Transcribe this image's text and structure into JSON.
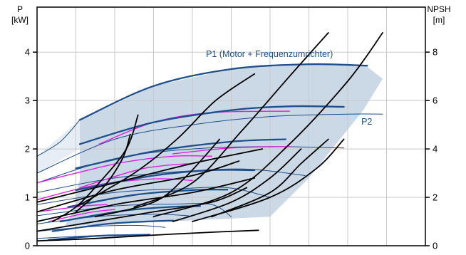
{
  "chart_data": {
    "type": "line",
    "title": "",
    "xlim": [
      0,
      10
    ],
    "y_left": {
      "label_line1": "P",
      "label_line2": "[kW]",
      "ticks": [
        0,
        1,
        2,
        3,
        4
      ],
      "ylim": [
        0,
        5
      ]
    },
    "y_right": {
      "label_line1": "NPSH",
      "label_line2": "[m]",
      "ticks": [
        0,
        2,
        4,
        6,
        8
      ],
      "ylim": [
        0,
        10
      ]
    },
    "grid": true,
    "colors": {
      "p1": "#1d4f8c",
      "p2": "#1d4f8c",
      "thin_blue": "#1d4f8c",
      "magenta": "#e020e0",
      "npsh": "#000000",
      "band_fill": "#cbd8e6",
      "band_light_fill": "#e6edf5",
      "label_color": "#1d4f8c"
    },
    "annotations": [
      {
        "text": "P1 (Motor + Frequenzumrichter)",
        "x": 4.35,
        "y": 3.9
      },
      {
        "text": "P2",
        "x": 8.35,
        "y": 2.5
      }
    ],
    "band_upper": [
      [
        1.1,
        2.6
      ],
      [
        3.0,
        3.3
      ],
      [
        5.0,
        3.65
      ],
      [
        7.0,
        3.77
      ],
      [
        8.5,
        3.7
      ],
      [
        8.9,
        3.45
      ],
      [
        8.4,
        2.8
      ],
      [
        7.0,
        1.4
      ],
      [
        6.0,
        0.6
      ]
    ],
    "band_lower": [
      [
        0.7,
        0.4
      ],
      [
        1.0,
        0.8
      ],
      [
        1.0,
        1.1
      ],
      [
        1.1,
        1.35
      ],
      [
        1.1,
        2.6
      ]
    ],
    "band_light": [
      [
        0.0,
        1.5
      ],
      [
        0.0,
        1.85
      ],
      [
        1.1,
        2.6
      ],
      [
        1.1,
        2.0
      ],
      [
        0.0,
        1.5
      ]
    ],
    "series": [
      {
        "group": "p_thick",
        "points": [
          [
            1.1,
            2.6
          ],
          [
            3.0,
            3.3
          ],
          [
            5.0,
            3.65
          ],
          [
            7.0,
            3.75
          ],
          [
            8.5,
            3.72
          ]
        ]
      },
      {
        "group": "p_thick",
        "points": [
          [
            1.1,
            2.1
          ],
          [
            3.0,
            2.55
          ],
          [
            5.0,
            2.8
          ],
          [
            6.5,
            2.88
          ],
          [
            7.9,
            2.87
          ]
        ]
      },
      {
        "group": "p_thick",
        "points": [
          [
            1.0,
            1.6
          ],
          [
            3.0,
            1.95
          ],
          [
            5.0,
            2.15
          ],
          [
            6.4,
            2.2
          ]
        ]
      },
      {
        "group": "p_thick",
        "points": [
          [
            1.0,
            1.15
          ],
          [
            3.0,
            1.45
          ],
          [
            4.5,
            1.56
          ],
          [
            5.6,
            1.56
          ]
        ]
      },
      {
        "group": "p_thick",
        "points": [
          [
            0.8,
            0.8
          ],
          [
            2.5,
            1.05
          ],
          [
            4.0,
            1.15
          ],
          [
            4.9,
            1.16
          ]
        ]
      },
      {
        "group": "p_thick",
        "points": [
          [
            0.6,
            0.5
          ],
          [
            2.2,
            0.72
          ],
          [
            3.4,
            0.8
          ],
          [
            4.2,
            0.82
          ]
        ]
      },
      {
        "group": "p_thick",
        "points": [
          [
            0.4,
            0.3
          ],
          [
            1.8,
            0.45
          ],
          [
            2.8,
            0.5
          ],
          [
            3.5,
            0.52
          ]
        ]
      },
      {
        "group": "p_thick",
        "points": [
          [
            0.3,
            0.12
          ],
          [
            1.5,
            0.2
          ],
          [
            2.3,
            0.22
          ],
          [
            2.9,
            0.23
          ]
        ]
      },
      {
        "group": "p_thin",
        "points": [
          [
            0.0,
            1.85
          ],
          [
            0.6,
            2.15
          ],
          [
            1.1,
            2.6
          ]
        ]
      },
      {
        "group": "p_thin",
        "points": [
          [
            0.0,
            1.5
          ],
          [
            2.0,
            2.2
          ],
          [
            4.0,
            2.5
          ],
          [
            6.0,
            2.67
          ],
          [
            8.0,
            2.72
          ],
          [
            8.9,
            2.72
          ]
        ]
      },
      {
        "group": "p_thin",
        "points": [
          [
            0.0,
            1.3
          ],
          [
            2.0,
            1.8
          ],
          [
            4.0,
            2.0
          ],
          [
            6.0,
            2.05
          ],
          [
            7.9,
            2.02
          ]
        ]
      },
      {
        "group": "p_thin",
        "points": [
          [
            0.0,
            1.1
          ],
          [
            2.0,
            1.4
          ],
          [
            4.0,
            1.55
          ],
          [
            5.5,
            1.58
          ],
          [
            6.9,
            1.45
          ]
        ]
      },
      {
        "group": "p_thin",
        "points": [
          [
            0.0,
            0.85
          ],
          [
            2.0,
            1.1
          ],
          [
            3.5,
            1.17
          ],
          [
            4.9,
            1.2
          ],
          [
            6.0,
            1.0
          ]
        ]
      },
      {
        "group": "p_thin",
        "points": [
          [
            0.0,
            0.62
          ],
          [
            2.0,
            0.82
          ],
          [
            3.5,
            0.86
          ],
          [
            4.5,
            0.85
          ],
          [
            5.0,
            0.6
          ]
        ]
      },
      {
        "group": "p_thin",
        "points": [
          [
            0.0,
            0.45
          ],
          [
            1.5,
            0.6
          ],
          [
            3.0,
            0.65
          ],
          [
            3.9,
            0.62
          ]
        ]
      },
      {
        "group": "p_thin",
        "points": [
          [
            0.0,
            0.3
          ],
          [
            1.5,
            0.4
          ],
          [
            2.6,
            0.42
          ],
          [
            3.3,
            0.38
          ]
        ]
      },
      {
        "group": "p_thin",
        "points": [
          [
            0.0,
            0.15
          ],
          [
            1.2,
            0.2
          ],
          [
            2.2,
            0.22
          ],
          [
            2.7,
            0.2
          ]
        ]
      },
      {
        "group": "magenta",
        "points": [
          [
            1.6,
            2.1
          ],
          [
            3.0,
            2.55
          ],
          [
            4.5,
            2.75
          ],
          [
            6.5,
            2.78
          ]
        ]
      },
      {
        "group": "magenta",
        "points": [
          [
            0.0,
            1.3
          ],
          [
            1.0,
            1.5
          ],
          [
            2.2,
            1.72
          ],
          [
            3.5,
            1.85
          ],
          [
            4.5,
            1.85
          ]
        ]
      },
      {
        "group": "magenta",
        "points": [
          [
            1.1,
            1.2
          ],
          [
            2.5,
            1.55
          ],
          [
            3.2,
            1.65
          ],
          [
            4.0,
            1.7
          ]
        ]
      },
      {
        "group": "magenta",
        "points": [
          [
            0.0,
            0.95
          ],
          [
            1.5,
            1.25
          ],
          [
            3.0,
            1.38
          ],
          [
            4.0,
            1.35
          ]
        ]
      },
      {
        "group": "magenta",
        "points": [
          [
            3.5,
            1.9
          ],
          [
            5.0,
            2.02
          ],
          [
            6.5,
            2.05
          ]
        ]
      },
      {
        "group": "magenta",
        "points": [
          [
            0.0,
            0.7
          ],
          [
            1.2,
            0.82
          ],
          [
            1.8,
            0.85
          ]
        ]
      },
      {
        "group": "magenta",
        "points": [
          [
            0.3,
            0.5
          ],
          [
            1.3,
            0.68
          ],
          [
            2.0,
            0.75
          ]
        ]
      },
      {
        "group": "npsh",
        "points": [
          [
            0.0,
            0.1
          ],
          [
            1.5,
            0.15
          ],
          [
            3.0,
            0.22
          ],
          [
            4.5,
            0.28
          ],
          [
            5.7,
            0.32
          ]
        ]
      },
      {
        "group": "npsh",
        "points": [
          [
            0.0,
            0.3
          ],
          [
            1.5,
            0.5
          ],
          [
            3.0,
            0.7
          ],
          [
            4.5,
            0.9
          ],
          [
            5.4,
            1.2
          ]
        ]
      },
      {
        "group": "npsh",
        "points": [
          [
            0.0,
            0.5
          ],
          [
            2.0,
            0.85
          ],
          [
            4.0,
            1.1
          ],
          [
            5.6,
            1.4
          ]
        ]
      },
      {
        "group": "npsh",
        "points": [
          [
            0.0,
            0.7
          ],
          [
            2.0,
            1.15
          ],
          [
            4.0,
            1.45
          ],
          [
            5.2,
            1.75
          ]
        ]
      },
      {
        "group": "npsh",
        "points": [
          [
            0.0,
            0.9
          ],
          [
            2.0,
            1.3
          ],
          [
            4.0,
            1.7
          ],
          [
            5.8,
            2.0
          ]
        ]
      },
      {
        "group": "npsh",
        "points": [
          [
            1.0,
            0.8
          ],
          [
            2.5,
            1.5
          ],
          [
            3.6,
            2.2
          ],
          [
            4.6,
            3.0
          ],
          [
            5.6,
            3.55
          ]
        ]
      },
      {
        "group": "npsh",
        "points": [
          [
            2.5,
            0.8
          ],
          [
            4.0,
            1.3
          ],
          [
            5.3,
            2.4
          ],
          [
            6.5,
            3.5
          ],
          [
            7.5,
            4.4
          ]
        ]
      },
      {
        "group": "npsh",
        "points": [
          [
            3.0,
            0.6
          ],
          [
            5.0,
            1.1
          ],
          [
            6.5,
            2.1
          ],
          [
            8.0,
            3.4
          ],
          [
            8.9,
            4.4
          ]
        ]
      },
      {
        "group": "npsh",
        "points": [
          [
            4.0,
            0.5
          ],
          [
            6.0,
            1.0
          ],
          [
            7.2,
            1.6
          ],
          [
            7.9,
            2.2
          ]
        ]
      },
      {
        "group": "npsh",
        "points": [
          [
            4.5,
            0.6
          ],
          [
            6.0,
            1.1
          ],
          [
            6.8,
            1.7
          ],
          [
            7.5,
            2.2
          ]
        ]
      },
      {
        "group": "npsh",
        "points": [
          [
            3.5,
            0.5
          ],
          [
            5.0,
            0.9
          ],
          [
            6.0,
            1.4
          ],
          [
            6.8,
            2.0
          ]
        ]
      },
      {
        "group": "npsh",
        "points": [
          [
            1.5,
            0.6
          ],
          [
            3.0,
            0.9
          ],
          [
            3.8,
            1.4
          ],
          [
            4.7,
            2.2
          ]
        ]
      },
      {
        "group": "npsh",
        "points": [
          [
            0.4,
            0.5
          ],
          [
            1.0,
            0.8
          ],
          [
            1.6,
            1.3
          ],
          [
            2.3,
            2.0
          ],
          [
            2.6,
            2.7
          ]
        ]
      },
      {
        "group": "npsh",
        "points": [
          [
            1.0,
            0.7
          ],
          [
            1.7,
            1.2
          ],
          [
            2.2,
            1.8
          ],
          [
            2.4,
            2.3
          ]
        ]
      }
    ]
  }
}
